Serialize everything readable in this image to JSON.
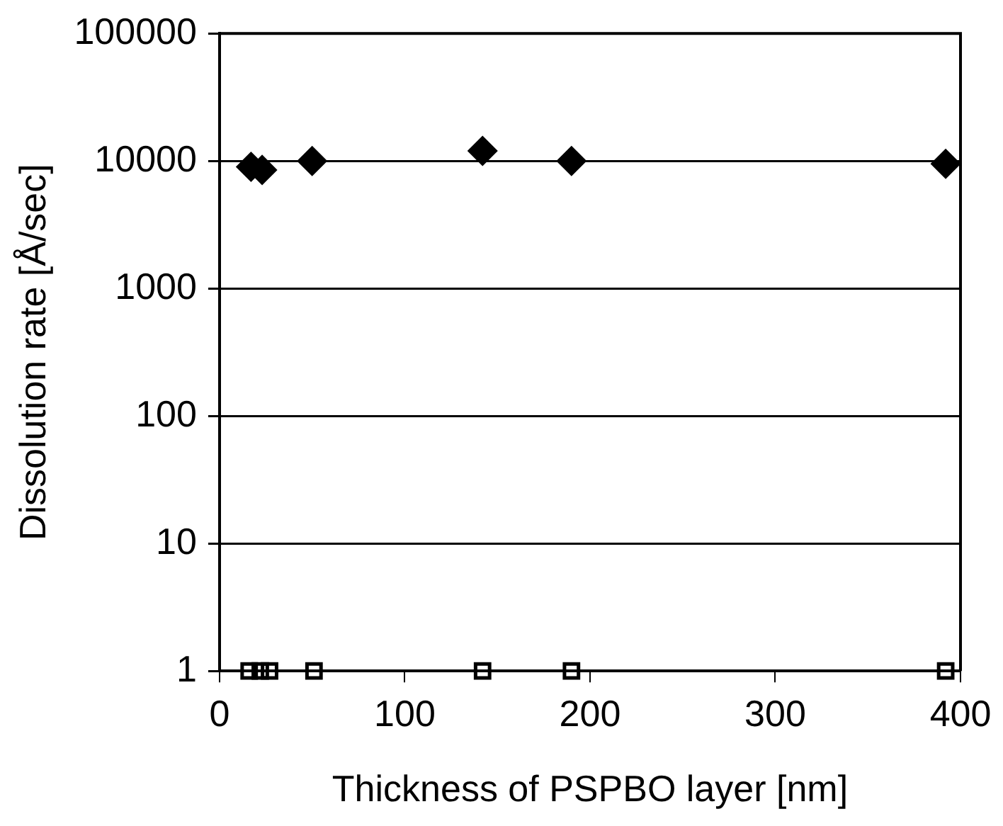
{
  "chart_data": {
    "type": "scatter",
    "xlabel": "Thickness of PSPBO layer [nm]",
    "ylabel": "Dissolution rate [Å/sec]",
    "xlim": [
      0,
      400
    ],
    "xticks": [
      0,
      100,
      200,
      300,
      400
    ],
    "ylim": [
      1,
      100000
    ],
    "yticks": [
      1,
      10,
      100,
      1000,
      10000,
      100000
    ],
    "log": "y",
    "grid": "y",
    "legend": false,
    "series": [
      {
        "color": "#000000",
        "marker": "diamond",
        "x": [
          17,
          23,
          50,
          142,
          190,
          392
        ],
        "values": [
          9000,
          8500,
          10000,
          12000,
          10000,
          9500
        ]
      },
      {
        "color": "#000000",
        "marker": "square",
        "x": [
          16,
          22,
          27,
          51,
          142,
          190,
          392
        ],
        "values": [
          1,
          1,
          1,
          1,
          1,
          1,
          1
        ]
      }
    ]
  }
}
